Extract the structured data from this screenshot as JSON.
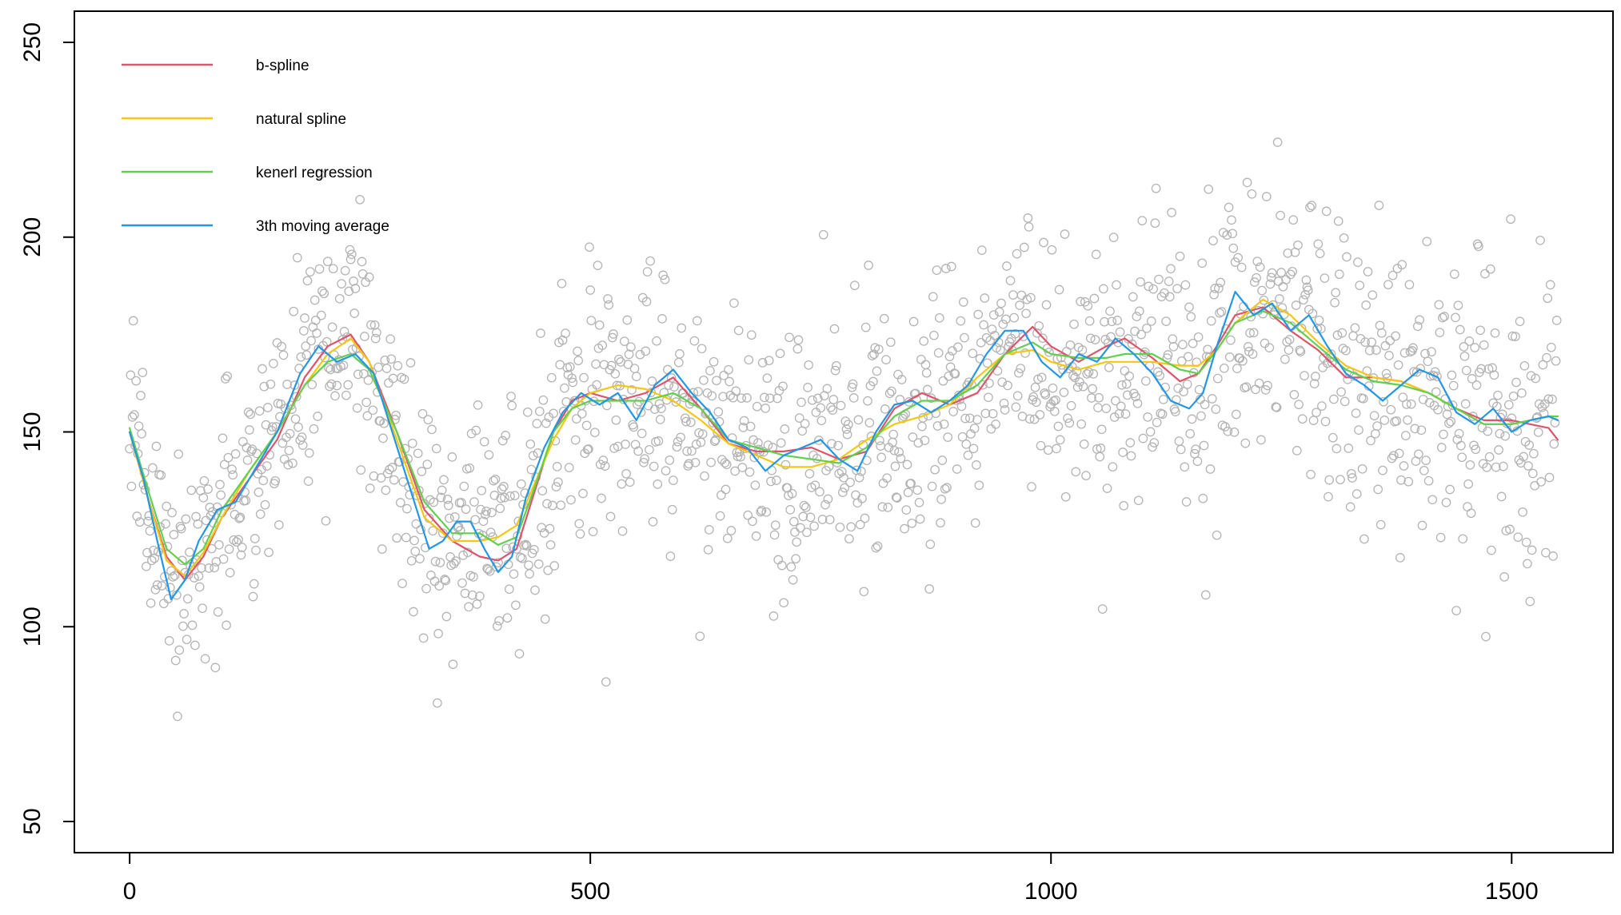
{
  "chart_data": {
    "type": "scatter",
    "title": "",
    "xlabel": "",
    "ylabel": "",
    "xlim": [
      -60,
      1610
    ],
    "ylim": [
      42,
      258
    ],
    "x_ticks": [
      0,
      500,
      1000,
      1500
    ],
    "x_tick_labels": [
      "0",
      "500",
      "1000",
      "1500"
    ],
    "y_ticks": [
      50,
      100,
      150,
      200,
      250
    ],
    "y_tick_labels": [
      "50",
      "100",
      "150",
      "200",
      "250"
    ],
    "grid": false,
    "legend_position": "top-left",
    "point_color": "#b4b4b4",
    "point_count": 1550,
    "series": [
      {
        "name": "b-spline",
        "color": "#DF536B",
        "x": [
          0,
          20,
          40,
          60,
          80,
          100,
          130,
          160,
          190,
          215,
          240,
          260,
          290,
          320,
          350,
          380,
          400,
          420,
          440,
          460,
          480,
          500,
          530,
          560,
          590,
          620,
          650,
          680,
          710,
          740,
          770,
          800,
          830,
          860,
          890,
          920,
          950,
          980,
          1000,
          1030,
          1060,
          1080,
          1110,
          1140,
          1160,
          1180,
          1200,
          1230,
          1260,
          1290,
          1320,
          1350,
          1380,
          1410,
          1440,
          1470,
          1500,
          1520,
          1540,
          1550
        ],
        "y": [
          150,
          133,
          118,
          112,
          118,
          128,
          138,
          148,
          164,
          172,
          175,
          168,
          150,
          130,
          122,
          118,
          117,
          120,
          135,
          150,
          158,
          160,
          158,
          160,
          164,
          156,
          147,
          145,
          145,
          146,
          143,
          145,
          156,
          160,
          157,
          160,
          170,
          177,
          172,
          168,
          172,
          174,
          169,
          163,
          165,
          172,
          180,
          182,
          176,
          171,
          164,
          164,
          163,
          160,
          156,
          153,
          153,
          152,
          151,
          148
        ]
      },
      {
        "name": "natural spline",
        "color": "#F5C710",
        "x": [
          0,
          20,
          40,
          60,
          80,
          100,
          130,
          160,
          190,
          215,
          240,
          260,
          290,
          320,
          350,
          380,
          400,
          420,
          440,
          460,
          480,
          500,
          530,
          560,
          590,
          620,
          650,
          680,
          710,
          740,
          770,
          800,
          830,
          860,
          890,
          920,
          950,
          980,
          1000,
          1030,
          1060,
          1080,
          1110,
          1140,
          1160,
          1180,
          1200,
          1230,
          1260,
          1290,
          1320,
          1350,
          1380,
          1410,
          1440,
          1470,
          1500,
          1520,
          1540,
          1550
        ],
        "y": [
          150,
          133,
          117,
          113,
          119,
          128,
          140,
          150,
          162,
          170,
          174,
          168,
          148,
          128,
          122,
          122,
          123,
          126,
          137,
          148,
          156,
          160,
          162,
          161,
          158,
          153,
          147,
          144,
          141,
          141,
          143,
          148,
          152,
          154,
          157,
          164,
          170,
          171,
          168,
          166,
          168,
          168,
          168,
          167,
          167,
          171,
          178,
          184,
          180,
          173,
          167,
          164,
          163,
          160,
          156,
          152,
          152,
          153,
          154,
          154
        ]
      },
      {
        "name": "kenerl regression",
        "color": "#61D04F",
        "x": [
          0,
          20,
          40,
          60,
          80,
          100,
          130,
          160,
          190,
          215,
          240,
          260,
          290,
          320,
          350,
          380,
          400,
          420,
          440,
          460,
          480,
          500,
          530,
          560,
          590,
          620,
          650,
          680,
          710,
          740,
          770,
          800,
          830,
          860,
          890,
          920,
          950,
          980,
          1000,
          1030,
          1060,
          1080,
          1110,
          1140,
          1160,
          1180,
          1200,
          1230,
          1260,
          1290,
          1320,
          1350,
          1380,
          1410,
          1440,
          1470,
          1500,
          1520,
          1540,
          1550
        ],
        "y": [
          151,
          135,
          120,
          116,
          120,
          130,
          140,
          150,
          162,
          168,
          170,
          166,
          150,
          132,
          124,
          124,
          121,
          123,
          136,
          150,
          156,
          158,
          158,
          158,
          160,
          156,
          148,
          146,
          144,
          143,
          142,
          146,
          154,
          158,
          158,
          162,
          170,
          173,
          170,
          169,
          169,
          170,
          170,
          166,
          165,
          171,
          178,
          181,
          178,
          172,
          166,
          163,
          162,
          160,
          156,
          152,
          152,
          153,
          154,
          154
        ]
      },
      {
        "name": "3th moving average",
        "color": "#2297E6",
        "x": [
          0,
          15,
          30,
          45,
          60,
          75,
          95,
          115,
          135,
          160,
          185,
          205,
          225,
          245,
          265,
          285,
          305,
          325,
          340,
          355,
          370,
          385,
          400,
          415,
          430,
          450,
          470,
          490,
          510,
          530,
          550,
          570,
          590,
          610,
          630,
          650,
          670,
          690,
          710,
          730,
          750,
          770,
          790,
          810,
          830,
          850,
          870,
          890,
          910,
          930,
          950,
          970,
          990,
          1010,
          1030,
          1050,
          1070,
          1090,
          1110,
          1130,
          1150,
          1165,
          1180,
          1200,
          1220,
          1240,
          1260,
          1280,
          1300,
          1320,
          1340,
          1360,
          1380,
          1400,
          1420,
          1440,
          1460,
          1480,
          1500,
          1520,
          1540,
          1550
        ],
        "y": [
          150,
          138,
          122,
          107,
          112,
          122,
          130,
          132,
          140,
          150,
          165,
          172,
          168,
          170,
          165,
          150,
          135,
          120,
          122,
          127,
          127,
          120,
          114,
          118,
          133,
          146,
          155,
          160,
          157,
          160,
          153,
          162,
          166,
          160,
          155,
          148,
          146,
          140,
          144,
          146,
          148,
          143,
          140,
          150,
          157,
          158,
          155,
          158,
          162,
          170,
          176,
          176,
          168,
          164,
          170,
          168,
          174,
          170,
          165,
          158,
          156,
          160,
          172,
          186,
          180,
          183,
          176,
          180,
          172,
          165,
          162,
          158,
          162,
          166,
          164,
          155,
          152,
          156,
          150,
          153,
          154,
          153
        ]
      }
    ]
  }
}
